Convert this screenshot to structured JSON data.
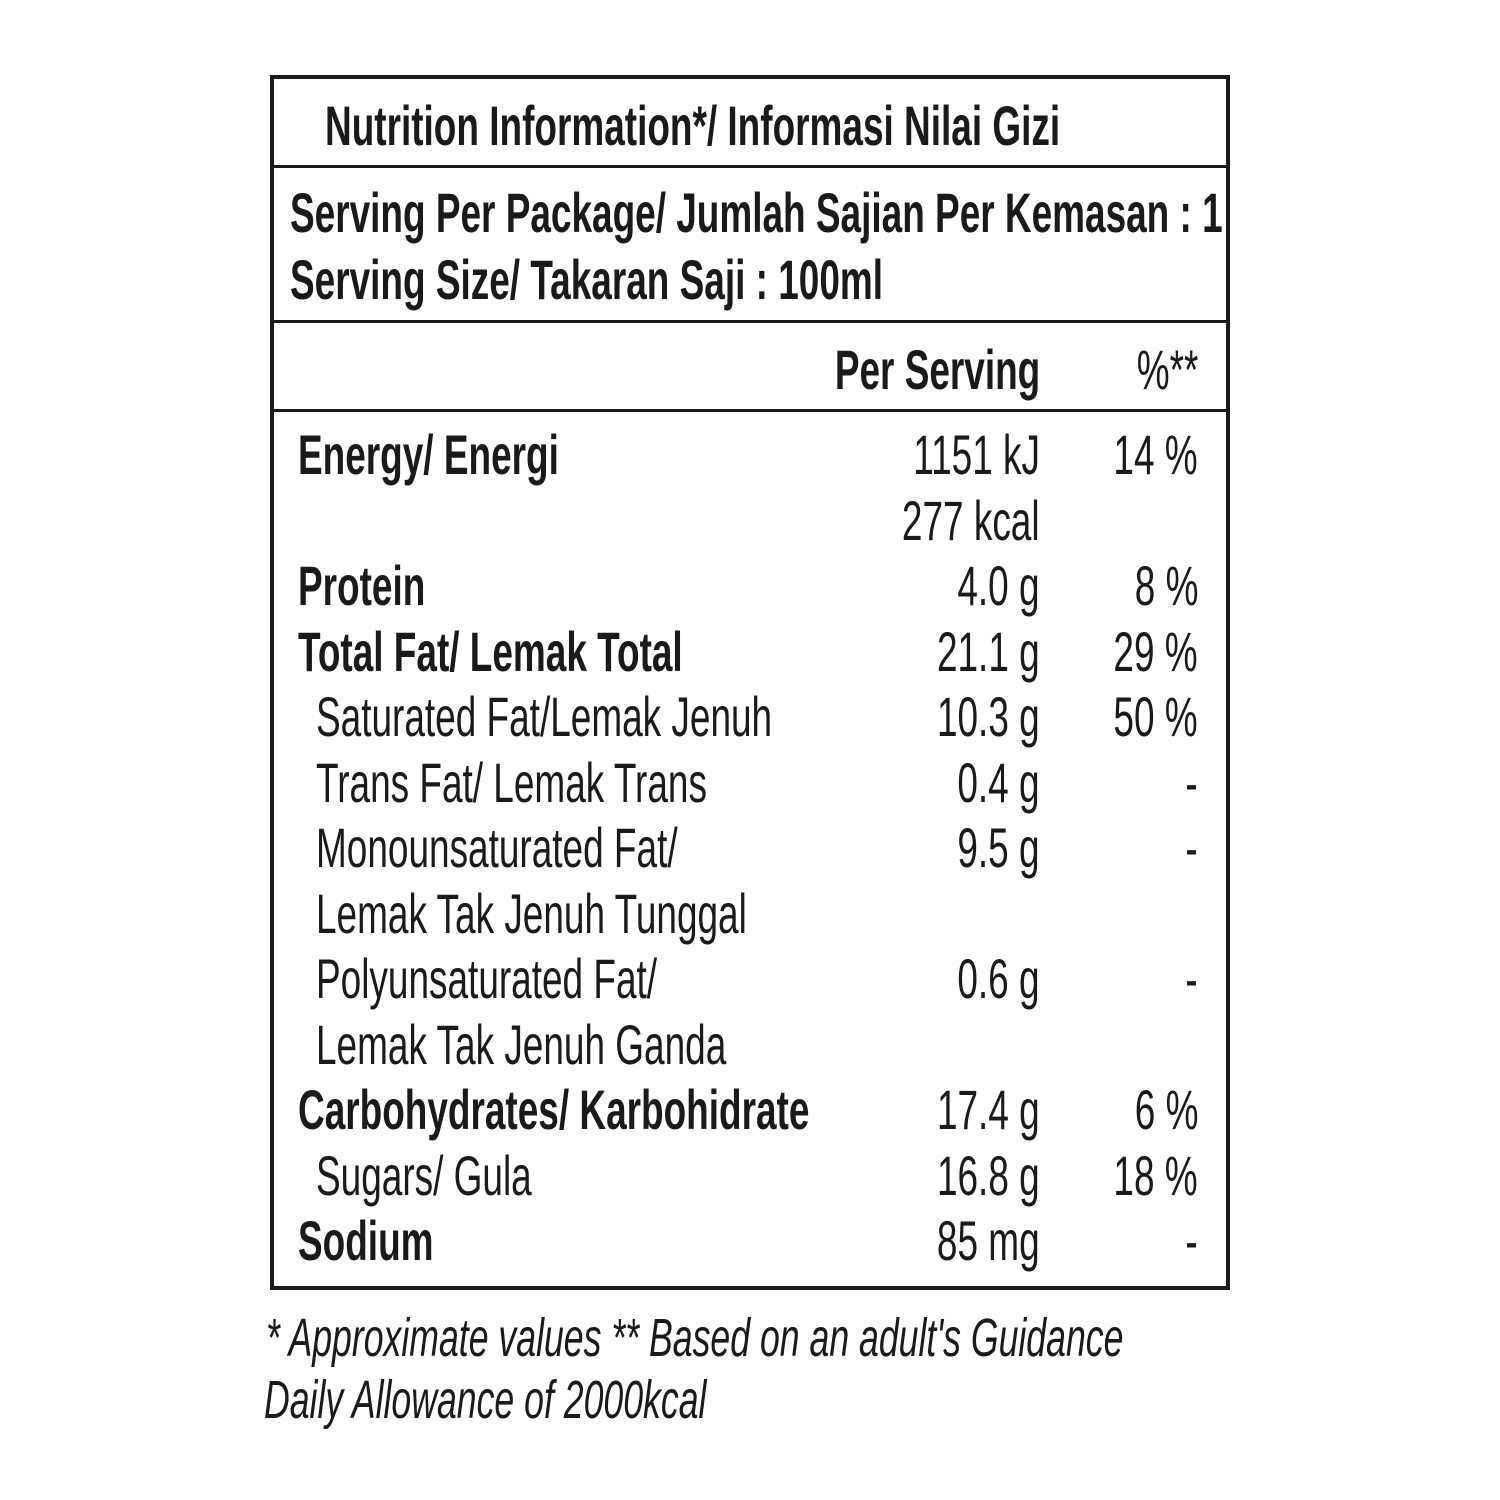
{
  "title": "Nutrition Information*/ Informasi Nilai Gizi",
  "serving_per_package": "Serving Per Package/ Jumlah Sajian Per Kemasan : 1",
  "serving_size": "Serving Size/ Takaran Saji : 100ml",
  "header": {
    "per_serving": "Per Serving",
    "percent": "%**"
  },
  "rows": [
    {
      "label": "Energy/ Energi",
      "value": "1151 kJ",
      "percent": "14 %",
      "bold": true
    },
    {
      "label": "",
      "value": "277 kcal",
      "percent": "",
      "bold": false
    },
    {
      "label": "Protein",
      "value": "4.0 g",
      "percent": "8 %",
      "bold": true
    },
    {
      "label": "Total Fat/ Lemak Total",
      "value": "21.1 g",
      "percent": "29 %",
      "bold": true
    },
    {
      "label": "Saturated Fat/Lemak Jenuh",
      "value": "10.3 g",
      "percent": "50 %",
      "indent": true
    },
    {
      "label": "Trans Fat/ Lemak Trans",
      "value": "0.4 g",
      "percent": "-",
      "indent": true
    },
    {
      "label": "Monounsaturated Fat/",
      "value": "9.5 g",
      "percent": "-",
      "indent": true
    },
    {
      "label": "Lemak Tak Jenuh Tunggal",
      "value": "",
      "percent": "",
      "indent": true
    },
    {
      "label": "Polyunsaturated Fat/",
      "value": "0.6 g",
      "percent": "-",
      "indent": true
    },
    {
      "label": "Lemak Tak Jenuh Ganda",
      "value": "",
      "percent": "",
      "indent": true
    },
    {
      "label": "Carbohydrates/ Karbohidrate",
      "value": "17.4 g",
      "percent": "6 %",
      "bold": true
    },
    {
      "label": "Sugars/ Gula",
      "value": "16.8 g",
      "percent": "18 %",
      "indent": true
    },
    {
      "label": "Sodium",
      "value": "85 mg",
      "percent": "-",
      "bold": true
    }
  ],
  "footnote_line1": "* Approximate values  ** Based on an adult's Guidance",
  "footnote_line2": "Daily Allowance of 2000kcal"
}
